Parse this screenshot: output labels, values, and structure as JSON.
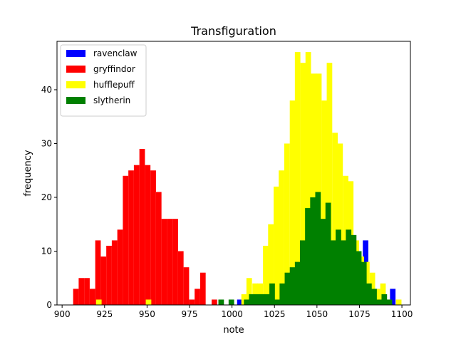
{
  "chart_data": {
    "type": "bar",
    "title": "Transfiguration",
    "xlabel": "note",
    "ylabel": "frequency",
    "xlim": [
      897,
      1105
    ],
    "ylim": [
      0,
      49
    ],
    "xticks": [
      900,
      925,
      950,
      975,
      1000,
      1025,
      1050,
      1075,
      1100
    ],
    "yticks": [
      0,
      10,
      20,
      30,
      40
    ],
    "bin_width": 3.25,
    "legend_position": "top-left",
    "series": [
      {
        "name": "ravenclaw",
        "color": "#0000ff",
        "bins": [
          [
            1003,
            1
          ],
          [
            1077,
            12
          ],
          [
            1093,
            3
          ]
        ]
      },
      {
        "name": "gryffindor",
        "color": "#ff0000",
        "bins": [
          [
            906.5,
            3
          ],
          [
            909.75,
            5
          ],
          [
            913,
            5
          ],
          [
            916.25,
            3
          ],
          [
            919.5,
            12
          ],
          [
            922.75,
            9
          ],
          [
            926,
            11
          ],
          [
            929.25,
            12
          ],
          [
            932.5,
            14
          ],
          [
            935.75,
            24
          ],
          [
            939,
            25
          ],
          [
            942.25,
            26
          ],
          [
            945.5,
            29
          ],
          [
            948.75,
            26
          ],
          [
            952,
            25
          ],
          [
            955.25,
            21
          ],
          [
            958.5,
            16
          ],
          [
            961.75,
            16
          ],
          [
            965,
            16
          ],
          [
            968.25,
            10
          ],
          [
            971.5,
            7
          ],
          [
            974.75,
            1
          ],
          [
            978,
            3
          ],
          [
            981.25,
            6
          ],
          [
            988,
            1
          ]
        ]
      },
      {
        "name": "hufflepuff",
        "color": "#ffff00",
        "bins": [
          [
            920,
            1
          ],
          [
            949.25,
            1
          ],
          [
            1005.5,
            2
          ],
          [
            1008.5,
            5
          ],
          [
            1012,
            4
          ],
          [
            1015,
            4
          ],
          [
            1018.25,
            11
          ],
          [
            1021.25,
            15
          ],
          [
            1024.5,
            22
          ],
          [
            1027.5,
            25
          ],
          [
            1030.75,
            30
          ],
          [
            1034,
            38
          ],
          [
            1037,
            47
          ],
          [
            1040.25,
            45
          ],
          [
            1043.25,
            47
          ],
          [
            1046.5,
            43
          ],
          [
            1049.5,
            43
          ],
          [
            1052.75,
            38
          ],
          [
            1055.75,
            45
          ],
          [
            1059,
            32
          ],
          [
            1062,
            30
          ],
          [
            1065.25,
            24
          ],
          [
            1068.25,
            23
          ],
          [
            1071.5,
            12
          ],
          [
            1074.5,
            9
          ],
          [
            1077.75,
            8
          ],
          [
            1081,
            6
          ],
          [
            1084,
            3
          ],
          [
            1087.25,
            4
          ],
          [
            1090.25,
            1
          ],
          [
            1096.5,
            1
          ]
        ]
      },
      {
        "name": "slytherin",
        "color": "#008000",
        "bins": [
          [
            992,
            1
          ],
          [
            998,
            1
          ],
          [
            1007,
            1
          ],
          [
            1010,
            2
          ],
          [
            1013,
            2
          ],
          [
            1016,
            2
          ],
          [
            1019,
            2
          ],
          [
            1022,
            4
          ],
          [
            1025,
            1
          ],
          [
            1028,
            4
          ],
          [
            1031,
            6
          ],
          [
            1034,
            7
          ],
          [
            1037,
            8
          ],
          [
            1040,
            12
          ],
          [
            1043,
            18
          ],
          [
            1046,
            20
          ],
          [
            1049,
            21
          ],
          [
            1052,
            16
          ],
          [
            1055,
            19
          ],
          [
            1058,
            12
          ],
          [
            1061,
            14
          ],
          [
            1064,
            12
          ],
          [
            1067,
            14
          ],
          [
            1070,
            13
          ],
          [
            1073,
            10
          ],
          [
            1076,
            8
          ],
          [
            1079,
            4
          ],
          [
            1082,
            3
          ],
          [
            1085,
            1
          ],
          [
            1088,
            2
          ],
          [
            1091,
            1
          ]
        ]
      }
    ]
  }
}
